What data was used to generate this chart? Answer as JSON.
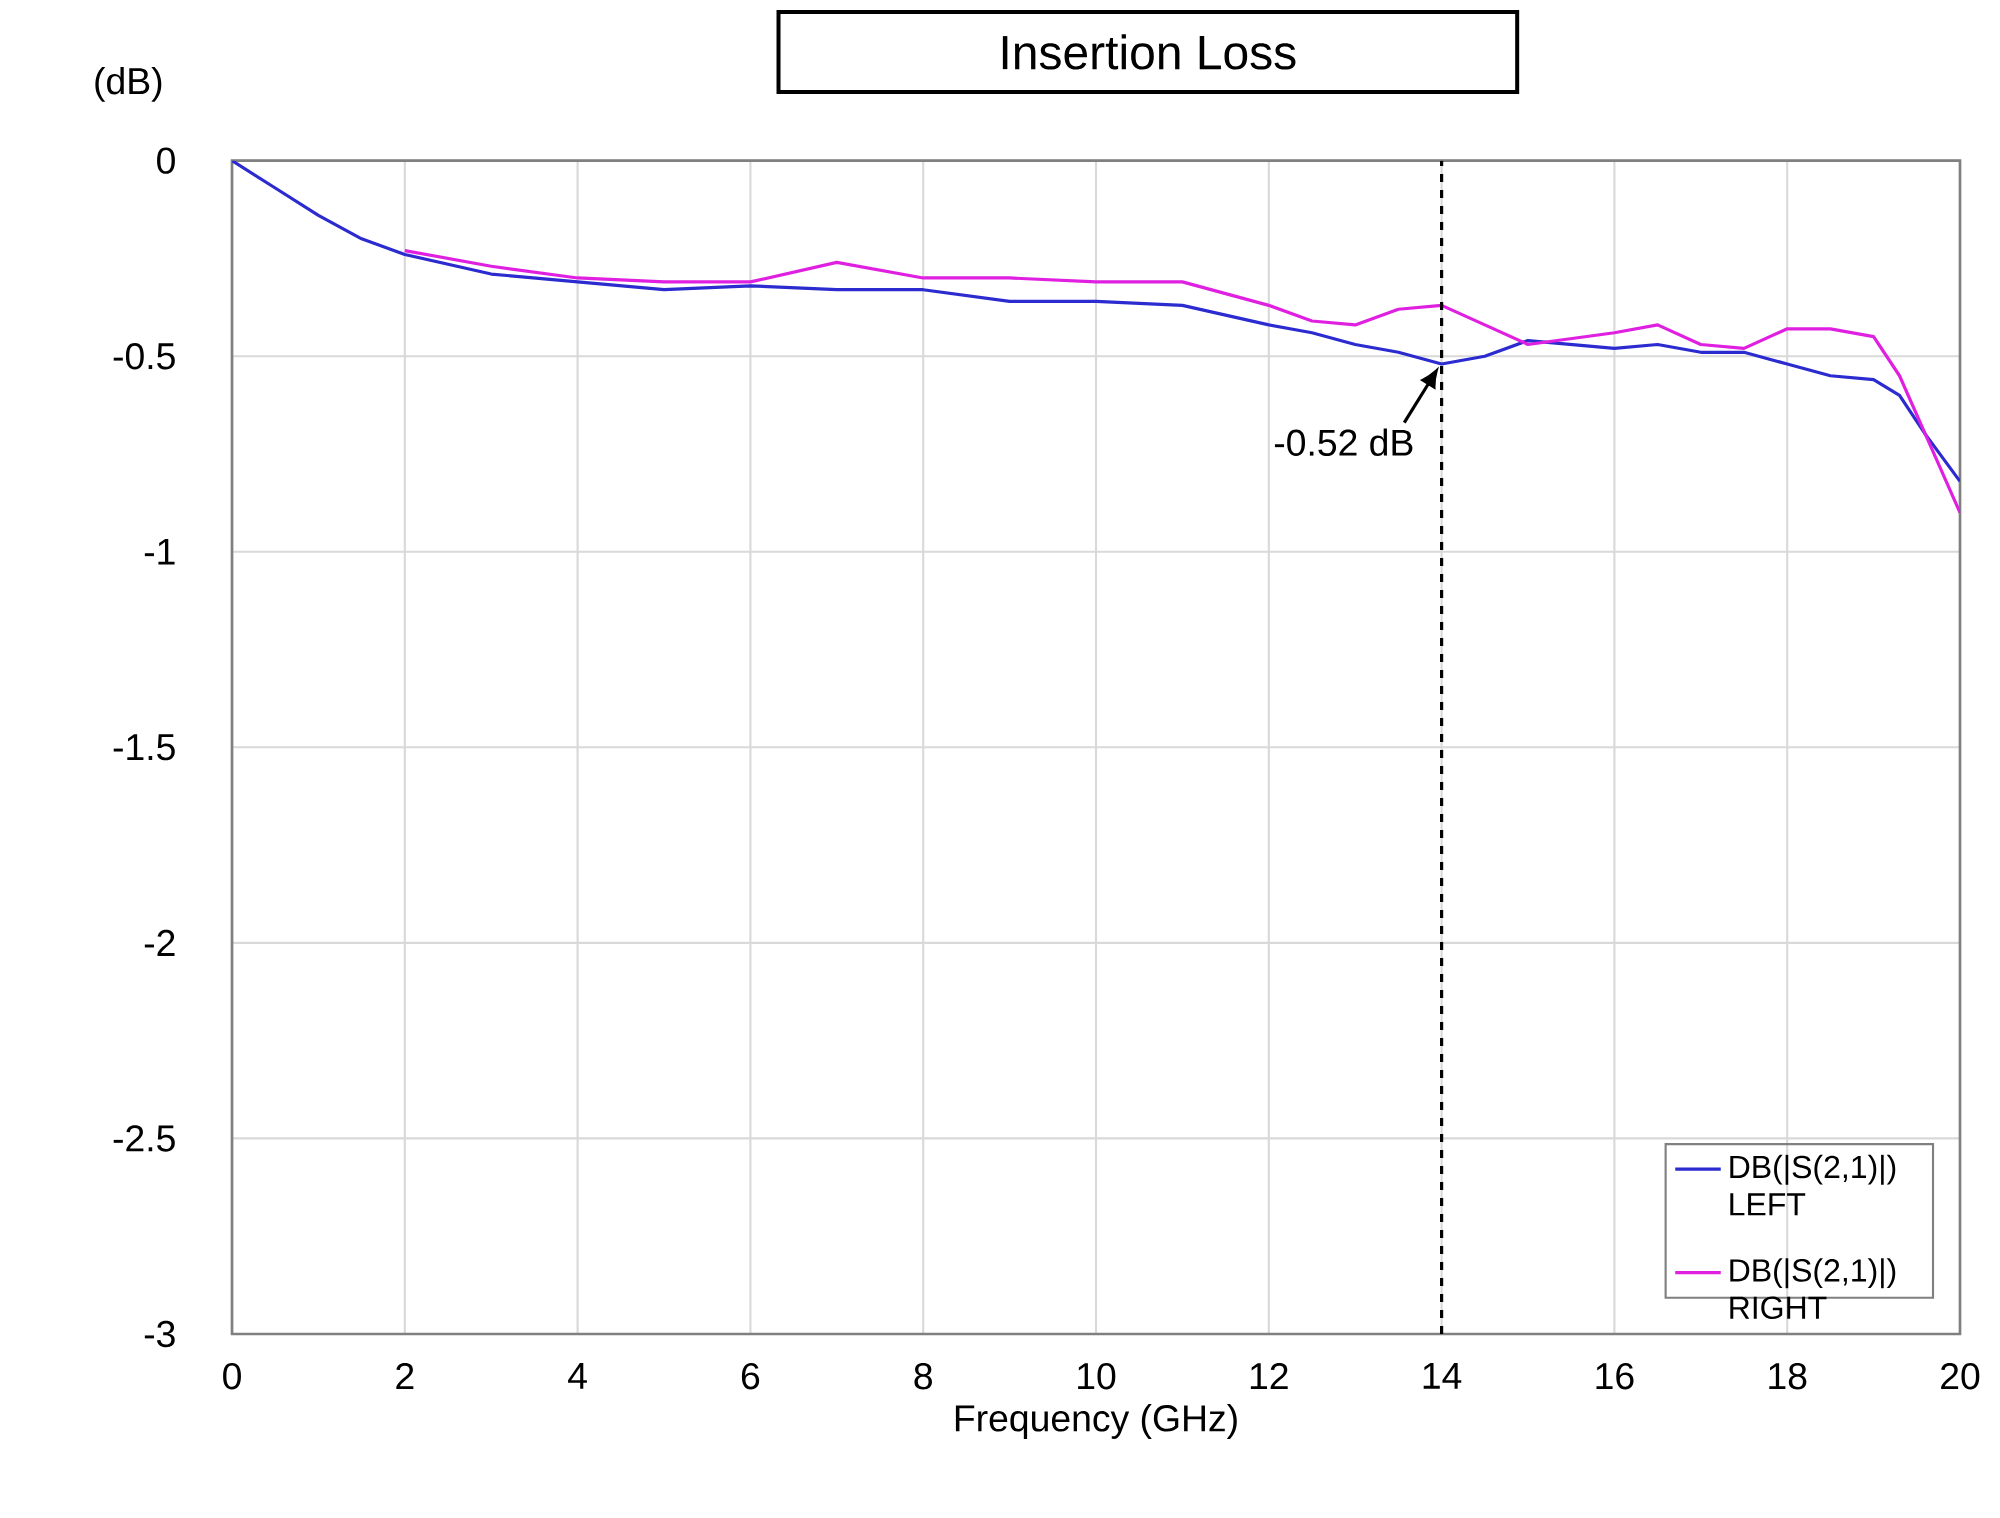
{
  "chart_data": {
    "type": "line",
    "title": "Insertion Loss",
    "xlabel": "Frequency (GHz)",
    "ylabel": "(dB)",
    "x": [
      0,
      0.5,
      1,
      1.5,
      2,
      3,
      4,
      5,
      6,
      7,
      8,
      9,
      10,
      11,
      12,
      12.5,
      13,
      13.5,
      14,
      14.5,
      15,
      16,
      16.5,
      17,
      17.5,
      18,
      18.5,
      19,
      19.3,
      19.6,
      20
    ],
    "series": [
      {
        "name": "DB(|S(2,1)|) LEFT",
        "color": "#2b2bd0",
        "values": [
          0,
          -0.07,
          -0.14,
          -0.2,
          -0.24,
          -0.29,
          -0.31,
          -0.33,
          -0.32,
          -0.33,
          -0.33,
          -0.36,
          -0.36,
          -0.37,
          -0.42,
          -0.44,
          -0.47,
          -0.49,
          -0.52,
          -0.5,
          -0.46,
          -0.48,
          -0.47,
          -0.49,
          -0.49,
          -0.52,
          -0.55,
          -0.56,
          -0.6,
          -0.7,
          -0.82
        ]
      },
      {
        "name": "DB(|S(2,1)|) RIGHT",
        "color": "#e020e0",
        "values": [
          null,
          null,
          null,
          null,
          -0.23,
          -0.27,
          -0.3,
          -0.31,
          -0.31,
          -0.26,
          -0.3,
          -0.3,
          -0.31,
          -0.31,
          -0.37,
          -0.41,
          -0.42,
          -0.38,
          -0.37,
          -0.42,
          -0.47,
          -0.44,
          -0.42,
          -0.47,
          -0.48,
          -0.43,
          -0.43,
          -0.45,
          -0.55,
          -0.7,
          -0.9
        ]
      }
    ],
    "xlim": [
      0,
      20
    ],
    "ylim": [
      -3,
      0
    ],
    "xticks": [
      0,
      2,
      4,
      6,
      8,
      10,
      12,
      14,
      16,
      18,
      20
    ],
    "yticks": [
      -3,
      -2.5,
      -2,
      -1.5,
      -1,
      -0.5,
      0
    ],
    "ref_lines": [
      {
        "axis": "x",
        "value": 14,
        "color": "#000000",
        "line_style": "dashed"
      }
    ],
    "annotations": [
      {
        "text": "-0.52 dB",
        "x": 14,
        "y": -0.52
      }
    ],
    "grid": true,
    "legend": "bottom right",
    "marker": "none",
    "line_style": "solid"
  }
}
